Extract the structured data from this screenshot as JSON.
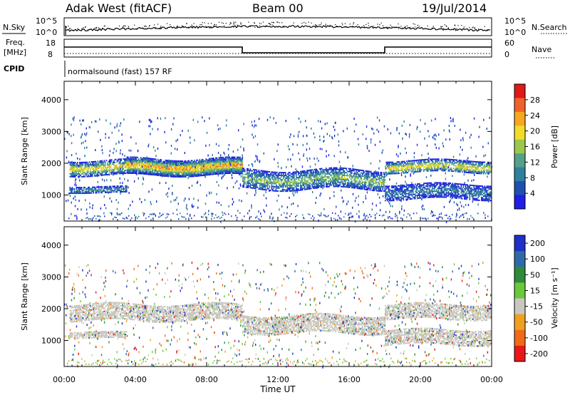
{
  "header": {
    "radar": "Adak West (fitACF)",
    "beam": "Beam 00",
    "date": "19/Jul/2014"
  },
  "noise_panel": {
    "left_label": "N.Sky",
    "right_label": "N.Search",
    "left_ticks": [
      "10^5",
      "10^0"
    ],
    "right_ticks": [
      "10^5",
      "10^0"
    ]
  },
  "freq_panel": {
    "left_label_line1": "Freq.",
    "left_label_line2": "[MHz]",
    "right_label": "Nave",
    "left_ticks": [
      "18",
      "8"
    ],
    "right_ticks": [
      "60",
      "0"
    ]
  },
  "cpid": {
    "label": "CPID",
    "program": "normalsound (fast) 157 RF"
  },
  "chart_data": [
    {
      "type": "heatmap",
      "title": "Power",
      "ylabel": "Slant Range [km]",
      "xlabel": "",
      "ylim": [
        180,
        4580
      ],
      "yticks": [
        "1000",
        "2000",
        "3000",
        "4000"
      ],
      "colorbar_label": "Power [dB]",
      "colorbar_ticks": [
        "4",
        "8",
        "12",
        "16",
        "20",
        "24",
        "28"
      ],
      "colors": [
        "#1f1fe6",
        "#1f4fb0",
        "#2e7fa0",
        "#55a08a",
        "#9cc84a",
        "#f2dc2a",
        "#f7a622",
        "#f0622a",
        "#e01818"
      ],
      "echo_bands": [
        {
          "t_start": 0.3,
          "t_end": 10.0,
          "range_low": 1650,
          "range_high": 2100,
          "peak_power": 22
        },
        {
          "t_start": 0.3,
          "t_end": 3.5,
          "range_low": 1080,
          "range_high": 1280,
          "peak_power": 10
        },
        {
          "t_start": 3.5,
          "t_end": 10.0,
          "range_low": 1650,
          "range_high": 2150,
          "peak_power": 26
        },
        {
          "t_start": 10.0,
          "t_end": 18.0,
          "range_low": 1200,
          "range_high": 1800,
          "peak_power": 16
        },
        {
          "t_start": 18.0,
          "t_end": 24.0,
          "range_low": 1700,
          "range_high": 2100,
          "peak_power": 22
        },
        {
          "t_start": 18.0,
          "t_end": 24.0,
          "range_low": 900,
          "range_high": 1350,
          "peak_power": 8
        }
      ]
    },
    {
      "type": "heatmap",
      "title": "Velocity",
      "ylabel": "Slant Range [km]",
      "xlabel": "Time UT",
      "ylim": [
        180,
        4580
      ],
      "yticks": [
        "1000",
        "2000",
        "3000",
        "4000"
      ],
      "xticks": [
        "00:00",
        "04:00",
        "08:00",
        "12:00",
        "16:00",
        "20:00",
        "00:00"
      ],
      "colorbar_label": "Velocity [m s⁻¹]",
      "colorbar_ticks": [
        "200",
        "100",
        "50",
        "15",
        "-15",
        "-50",
        "-100",
        "-200"
      ],
      "colors": [
        "#1f2fc8",
        "#2f6aa8",
        "#2f8a3a",
        "#6ac83a",
        "#c8c8c0",
        "#f0a020",
        "#f06a18",
        "#e81818"
      ],
      "echo_bands": [
        {
          "t_start": 0.3,
          "t_end": 10.0,
          "range_low": 1650,
          "range_high": 2150,
          "velocity": 0
        },
        {
          "t_start": 0.3,
          "t_end": 3.5,
          "range_low": 1080,
          "range_high": 1280,
          "velocity": 0
        },
        {
          "t_start": 10.0,
          "t_end": 18.0,
          "range_low": 1250,
          "range_high": 1800,
          "velocity": 0
        },
        {
          "t_start": 18.0,
          "t_end": 24.0,
          "range_low": 1700,
          "range_high": 2150,
          "velocity": 0
        },
        {
          "t_start": 18.0,
          "t_end": 24.0,
          "range_low": 900,
          "range_high": 1350,
          "velocity": 0
        }
      ]
    }
  ]
}
